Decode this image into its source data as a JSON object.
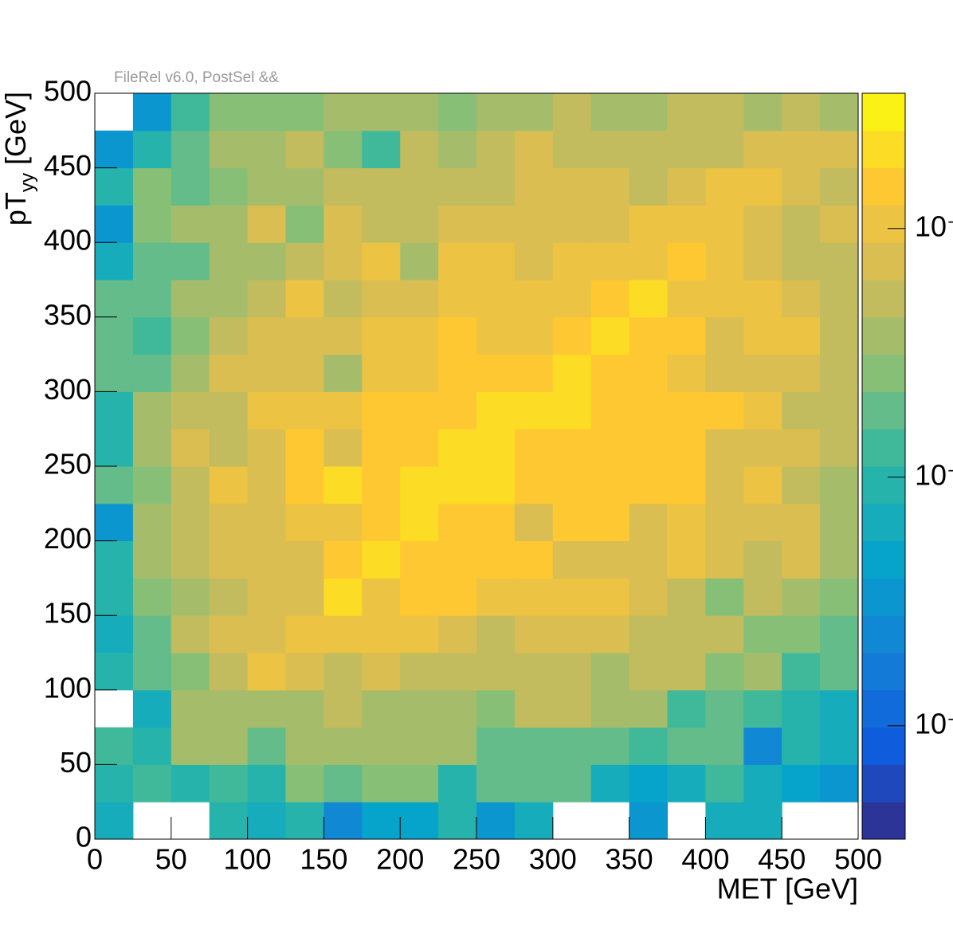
{
  "chart_data": {
    "type": "heatmap",
    "title": "FileRel v6.0, PostSel &&",
    "x_label": "MET [GeV]",
    "y_label": {
      "main": "pT",
      "subscript": "yy",
      "suffix": "[GeV]"
    },
    "xlim": [
      0,
      500
    ],
    "ylim": [
      0,
      500
    ],
    "xticks": [
      0,
      50,
      100,
      150,
      200,
      250,
      300,
      350,
      400,
      450,
      500
    ],
    "yticks": [
      0,
      50,
      100,
      150,
      200,
      250,
      300,
      350,
      400,
      450,
      500
    ],
    "x_bins": [
      0,
      25,
      50,
      75,
      100,
      125,
      150,
      175,
      200,
      225,
      250,
      275,
      300,
      325,
      350,
      375,
      400,
      425,
      450,
      475,
      500
    ],
    "y_bins": [
      0,
      25,
      50,
      75,
      100,
      125,
      150,
      175,
      200,
      225,
      250,
      275,
      300,
      325,
      350,
      375,
      400,
      425,
      450,
      475,
      500
    ],
    "z": [
      [
        6.7e-05,
        null,
        null,
        9.4e-05,
        6.7e-05,
        9.4e-05,
        2.4e-05,
        4.7e-05,
        4.7e-05,
        9.4e-05,
        3.3e-05,
        6.7e-05,
        null,
        null,
        3.3e-05,
        null,
        6.7e-05,
        6.7e-05,
        null,
        null
      ],
      [
        9.4e-05,
        0.00013,
        9.4e-05,
        0.00013,
        9.4e-05,
        0.00027,
        0.00019,
        0.00027,
        0.00027,
        9.4e-05,
        0.00019,
        0.00019,
        0.00019,
        6.7e-05,
        4.7e-05,
        6.7e-05,
        0.00013,
        6.7e-05,
        4.7e-05,
        3.3e-05
      ],
      [
        0.00013,
        9.4e-05,
        0.00038,
        0.00038,
        0.00019,
        0.00038,
        0.00038,
        0.00038,
        0.00038,
        0.00038,
        0.00019,
        0.00019,
        0.00019,
        0.00019,
        0.00013,
        0.00019,
        0.00019,
        2.4e-05,
        9.4e-05,
        6.7e-05
      ],
      [
        null,
        6.7e-05,
        0.00038,
        0.00038,
        0.00038,
        0.00038,
        0.00053,
        0.00038,
        0.00038,
        0.00038,
        0.00027,
        0.00053,
        0.00053,
        0.00038,
        0.00038,
        0.00013,
        0.00019,
        0.00013,
        9.4e-05,
        6.7e-05
      ],
      [
        9.4e-05,
        0.00019,
        0.00027,
        0.00053,
        0.00106,
        0.00075,
        0.00053,
        0.00075,
        0.00053,
        0.00053,
        0.00053,
        0.00053,
        0.00053,
        0.00038,
        0.00053,
        0.00053,
        0.00027,
        0.00038,
        0.00013,
        0.00019
      ],
      [
        6.7e-05,
        0.00019,
        0.00053,
        0.00075,
        0.00075,
        0.00106,
        0.00106,
        0.00106,
        0.00106,
        0.00075,
        0.00053,
        0.00075,
        0.00075,
        0.00075,
        0.00053,
        0.00053,
        0.00053,
        0.00027,
        0.00027,
        0.00019
      ],
      [
        9.4e-05,
        0.00027,
        0.00038,
        0.00053,
        0.00075,
        0.00075,
        0.0021,
        0.00106,
        0.0015,
        0.0015,
        0.00106,
        0.00106,
        0.00106,
        0.00106,
        0.00075,
        0.00053,
        0.00027,
        0.00053,
        0.00038,
        0.00027
      ],
      [
        9.4e-05,
        0.00038,
        0.00053,
        0.00075,
        0.00075,
        0.00075,
        0.0015,
        0.0021,
        0.0015,
        0.0015,
        0.0015,
        0.0015,
        0.00075,
        0.00075,
        0.00075,
        0.00106,
        0.00075,
        0.00053,
        0.00075,
        0.00038
      ],
      [
        3.3e-05,
        0.00038,
        0.00053,
        0.00075,
        0.00075,
        0.00106,
        0.00106,
        0.0015,
        0.0021,
        0.0015,
        0.0015,
        0.00075,
        0.0015,
        0.0015,
        0.00075,
        0.00106,
        0.00075,
        0.00075,
        0.00075,
        0.00038
      ],
      [
        0.00019,
        0.00027,
        0.00053,
        0.00106,
        0.00075,
        0.0015,
        0.0021,
        0.0015,
        0.0021,
        0.0021,
        0.0021,
        0.0015,
        0.0015,
        0.0015,
        0.0015,
        0.0015,
        0.00075,
        0.00106,
        0.00053,
        0.00038
      ],
      [
        9.4e-05,
        0.00038,
        0.00075,
        0.00053,
        0.00075,
        0.0015,
        0.00075,
        0.0015,
        0.0015,
        0.0021,
        0.0021,
        0.0015,
        0.0015,
        0.0015,
        0.0015,
        0.0015,
        0.00075,
        0.00075,
        0.00075,
        0.00053
      ],
      [
        9.4e-05,
        0.00038,
        0.00053,
        0.00053,
        0.00106,
        0.00106,
        0.00106,
        0.0015,
        0.0015,
        0.0015,
        0.0021,
        0.0021,
        0.0021,
        0.0015,
        0.0015,
        0.0015,
        0.0015,
        0.00106,
        0.00053,
        0.00053
      ],
      [
        0.00019,
        0.00019,
        0.00038,
        0.00075,
        0.00075,
        0.00075,
        0.00038,
        0.00106,
        0.00106,
        0.0015,
        0.0015,
        0.0015,
        0.0021,
        0.0015,
        0.0015,
        0.00106,
        0.00075,
        0.00075,
        0.00075,
        0.00053
      ],
      [
        0.00019,
        0.00013,
        0.00027,
        0.00053,
        0.00075,
        0.00075,
        0.00075,
        0.00106,
        0.00106,
        0.0015,
        0.00106,
        0.00106,
        0.0015,
        0.0021,
        0.0015,
        0.0015,
        0.00075,
        0.00106,
        0.00106,
        0.00053
      ],
      [
        0.00019,
        0.00019,
        0.00038,
        0.00038,
        0.00053,
        0.00106,
        0.00053,
        0.00075,
        0.00075,
        0.00106,
        0.00106,
        0.00106,
        0.00106,
        0.0015,
        0.0021,
        0.00106,
        0.00106,
        0.00106,
        0.00075,
        0.00053
      ],
      [
        6.7e-05,
        0.00019,
        0.00019,
        0.00038,
        0.00038,
        0.00053,
        0.00075,
        0.00106,
        0.00038,
        0.00106,
        0.00106,
        0.00075,
        0.00106,
        0.00106,
        0.00106,
        0.0015,
        0.00106,
        0.00075,
        0.00053,
        0.00053
      ],
      [
        3.3e-05,
        0.00027,
        0.00038,
        0.00038,
        0.00075,
        0.00027,
        0.00075,
        0.00053,
        0.00053,
        0.00075,
        0.00075,
        0.00075,
        0.00075,
        0.00075,
        0.00106,
        0.00106,
        0.00106,
        0.00075,
        0.00053,
        0.00075
      ],
      [
        9.4e-05,
        0.00027,
        0.00019,
        0.00027,
        0.00038,
        0.00038,
        0.00053,
        0.00053,
        0.00053,
        0.00053,
        0.00053,
        0.00075,
        0.00075,
        0.00075,
        0.00053,
        0.00075,
        0.00106,
        0.00106,
        0.00075,
        0.00053
      ],
      [
        3.3e-05,
        9.4e-05,
        0.00019,
        0.00038,
        0.00038,
        0.00053,
        0.00027,
        0.00013,
        0.00053,
        0.00038,
        0.00053,
        0.00075,
        0.00053,
        0.00053,
        0.00053,
        0.00053,
        0.00053,
        0.00075,
        0.00075,
        0.00075
      ],
      [
        null,
        3.3e-05,
        0.00013,
        0.00027,
        0.00027,
        0.00027,
        0.00038,
        0.00038,
        0.00038,
        0.00027,
        0.00038,
        0.00038,
        0.00053,
        0.00038,
        0.00038,
        0.00053,
        0.00053,
        0.00038,
        0.00053,
        0.00038
      ]
    ],
    "zlog": true,
    "zlim": [
      3.5e-06,
      0.0035
    ],
    "zticks": [
      {
        "value": 1e-05,
        "label": "10⁻"
      },
      {
        "value": 0.0001,
        "label": "10⁻"
      },
      {
        "value": 0.001,
        "label": "10⁻"
      }
    ],
    "contours": 20,
    "palette": [
      "#352a87",
      "#0f5cdd",
      "#1481d6",
      "#06a4ca",
      "#2eb7a4",
      "#87bf77",
      "#d1bb59",
      "#fec832",
      "#f9fb0e"
    ]
  }
}
